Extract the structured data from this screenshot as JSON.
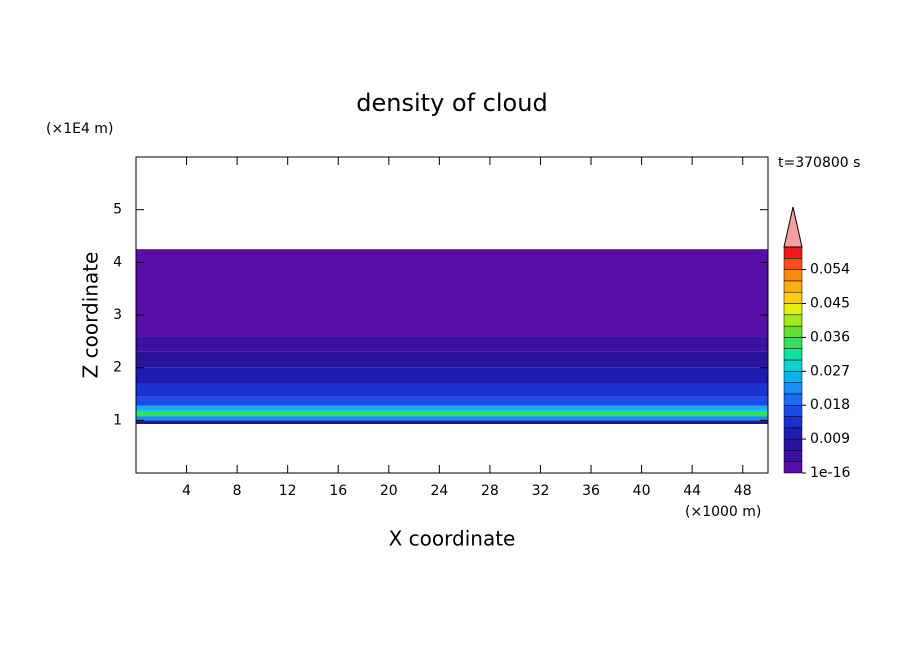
{
  "chart_data": {
    "type": "contour",
    "title": "density of cloud",
    "subtitle": "t=370800 s",
    "x_label": "X coordinate",
    "x_unit": "(×1000 m)",
    "y_label": "Z coordinate",
    "y_unit": "(×1E4 m)",
    "xlim": [
      0,
      50
    ],
    "xticks": [
      4,
      8,
      12,
      16,
      20,
      24,
      28,
      32,
      36,
      40,
      44,
      48
    ],
    "ylim": [
      0,
      6
    ],
    "yticks": [
      1,
      2,
      3,
      4,
      5
    ],
    "field": {
      "z_edges": [
        0.93,
        1.0,
        1.08,
        1.18,
        1.28,
        1.45,
        1.7,
        2.0,
        2.3,
        2.6,
        3.0,
        4.25
      ],
      "values": [
        0.008,
        0.022,
        0.033,
        0.024,
        0.017,
        0.012,
        0.009,
        0.006,
        0.004,
        0.002,
        0.001
      ]
    },
    "colorbar": {
      "levels": [
        1e-16,
        0.003,
        0.006,
        0.009,
        0.012,
        0.015,
        0.018,
        0.021,
        0.024,
        0.027,
        0.03,
        0.033,
        0.036,
        0.039,
        0.042,
        0.045,
        0.048,
        0.051,
        0.054,
        0.057,
        0.06
      ],
      "colors": [
        "#5a0ea8",
        "#3c10a0",
        "#28149a",
        "#1c1cb0",
        "#1c30d0",
        "#1c4ce8",
        "#1c6cf8",
        "#1c8cf8",
        "#10b0f0",
        "#10d0d0",
        "#10e0a0",
        "#30e060",
        "#60e030",
        "#a0e820",
        "#e0f010",
        "#f8d010",
        "#f8b010",
        "#f88810",
        "#f85010",
        "#f01818"
      ],
      "extend_color": "#f4a0a0",
      "ticks": [
        1e-16,
        0.009,
        0.018,
        0.027,
        0.036,
        0.045,
        0.054
      ]
    }
  }
}
